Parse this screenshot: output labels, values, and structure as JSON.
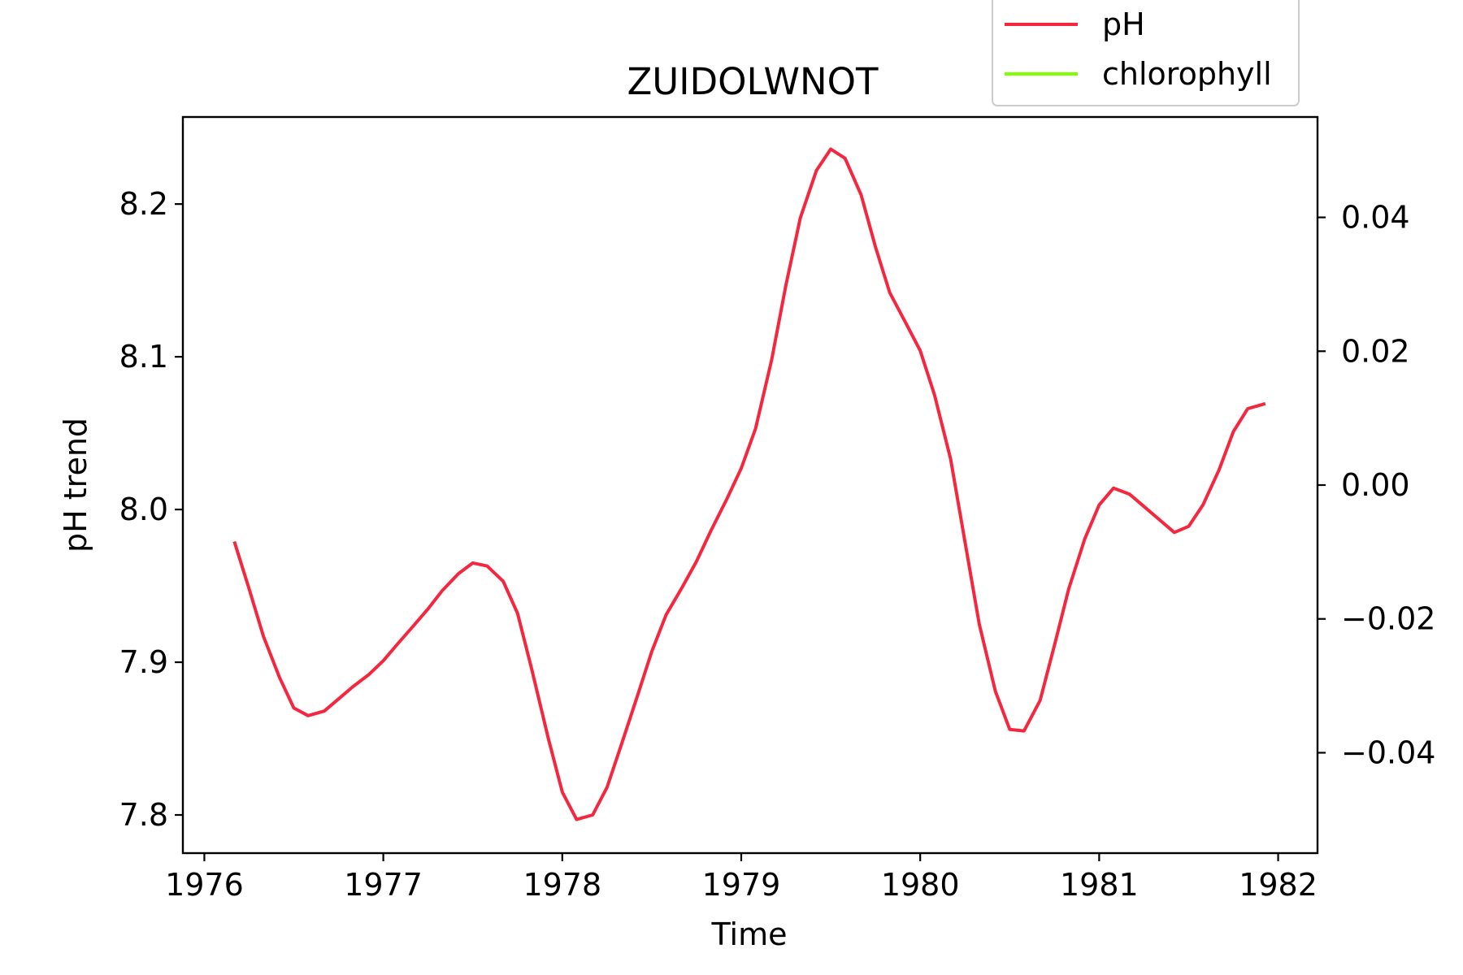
{
  "chart_data": {
    "type": "line",
    "title": "ZUIDOLWNOT",
    "xlabel": "Time",
    "ylabel": "pH trend",
    "y2label": "",
    "xlim": [
      1975.88,
      1982.22
    ],
    "ylim": [
      7.775,
      8.257
    ],
    "y2lim": [
      -0.055,
      0.055
    ],
    "xticks": [
      1976,
      1977,
      1978,
      1979,
      1980,
      1981,
      1982
    ],
    "xtick_labels": [
      "1976",
      "1977",
      "1978",
      "1979",
      "1980",
      "1981",
      "1982"
    ],
    "yticks": [
      7.8,
      7.9,
      8.0,
      8.1,
      8.2
    ],
    "ytick_labels": [
      "7.8",
      "7.9",
      "8.0",
      "8.1",
      "8.2"
    ],
    "y2ticks": [
      -0.04,
      -0.02,
      0.0,
      0.02,
      0.04
    ],
    "y2tick_labels": [
      "−0.04",
      "−0.02",
      "0.00",
      "0.02",
      "0.04"
    ],
    "grid": false,
    "legend": {
      "placement": "top-right, above plot"
    },
    "series": [
      {
        "name": "pH",
        "color": "#f5273f",
        "axis": "left",
        "x": [
          1976.17,
          1976.25,
          1976.33,
          1976.42,
          1976.5,
          1976.58,
          1976.67,
          1976.75,
          1976.83,
          1976.92,
          1977.0,
          1977.08,
          1977.17,
          1977.25,
          1977.33,
          1977.42,
          1977.5,
          1977.58,
          1977.67,
          1977.75,
          1977.83,
          1977.92,
          1978.0,
          1978.08,
          1978.17,
          1978.25,
          1978.33,
          1978.42,
          1978.5,
          1978.58,
          1978.67,
          1978.75,
          1978.83,
          1978.92,
          1979.0,
          1979.08,
          1979.17,
          1979.25,
          1979.33,
          1979.42,
          1979.5,
          1979.58,
          1979.67,
          1979.75,
          1979.83,
          1979.92,
          1980.0,
          1980.08,
          1980.17,
          1980.25,
          1980.33,
          1980.42,
          1980.5,
          1980.58,
          1980.67,
          1980.75,
          1980.83,
          1980.92,
          1981.0,
          1981.08,
          1981.17,
          1981.25,
          1981.33,
          1981.42,
          1981.5,
          1981.58,
          1981.67,
          1981.75,
          1981.83,
          1981.92
        ],
        "y": [
          7.978,
          7.948,
          7.917,
          7.89,
          7.87,
          7.865,
          7.868,
          7.876,
          7.884,
          7.892,
          7.901,
          7.912,
          7.924,
          7.935,
          7.947,
          7.958,
          7.965,
          7.963,
          7.953,
          7.932,
          7.895,
          7.851,
          7.815,
          7.797,
          7.8,
          7.818,
          7.846,
          7.878,
          7.907,
          7.931,
          7.949,
          7.966,
          7.986,
          8.007,
          8.027,
          8.053,
          8.098,
          8.147,
          8.191,
          8.222,
          8.236,
          8.23,
          8.206,
          8.172,
          8.142,
          8.122,
          8.104,
          8.075,
          8.033,
          7.979,
          7.925,
          7.881,
          7.856,
          7.855,
          7.875,
          7.911,
          7.948,
          7.981,
          8.003,
          8.014,
          8.01,
          8.002,
          7.994,
          7.985,
          7.989,
          8.003,
          8.026,
          8.051,
          8.066,
          8.069
        ]
      },
      {
        "name": "chlorophyll",
        "color": "#7fff00",
        "axis": "right",
        "x": [],
        "y": []
      }
    ]
  }
}
